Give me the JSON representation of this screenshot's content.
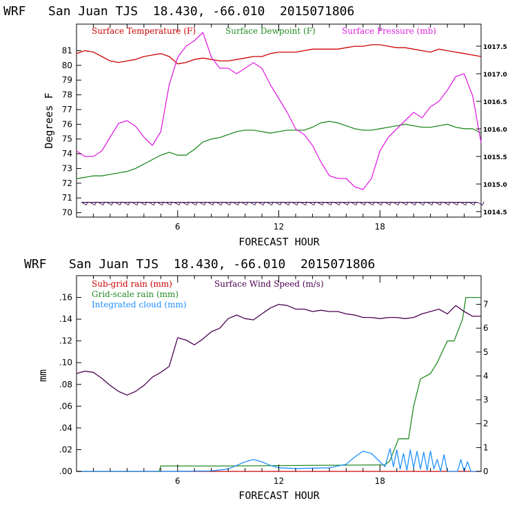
{
  "colors": {
    "temperature": "#cc0000",
    "dewpoint": "#228b22",
    "pressure": "#e020e0",
    "wind_barb": "#3a1050",
    "subgrid_rain": "#cc0000",
    "gridscale_rain": "#228b22",
    "cloud": "#1e90ff",
    "wind_speed": "#4b0050"
  },
  "chart_data": [
    {
      "type": "line",
      "title": "WRF   San Juan TJS  18.430, -66.010  2015071806",
      "xlabel": "FORECAST HOUR",
      "ylabel": "Degrees F",
      "xlim": [
        0,
        24
      ],
      "x_ticks": [
        6,
        12,
        18
      ],
      "ylim": [
        69.7,
        82.8
      ],
      "y_ticks": [
        70,
        71,
        72,
        73,
        74,
        75,
        76,
        77,
        78,
        79,
        80,
        81
      ],
      "y2lim": [
        1014.4,
        1017.9
      ],
      "y2_ticks": [
        "1014.5",
        "1015.0",
        "1015.5",
        "1016.0",
        "1016.5",
        "1017.0",
        "1017.5"
      ],
      "legend": [
        "Surface Temperature (F)",
        "Surface Dewpoint (F)",
        "Surface Pressure (mb)"
      ],
      "series": [
        {
          "name": "Surface Temperature (F)",
          "axis": "left",
          "x": [
            0,
            0.5,
            1,
            1.5,
            2,
            2.5,
            3,
            3.5,
            4,
            4.5,
            5,
            5.5,
            6,
            6.5,
            7,
            7.5,
            8,
            8.5,
            9,
            9.5,
            10,
            10.5,
            11,
            11.5,
            12,
            12.5,
            13,
            13.5,
            14,
            14.5,
            15,
            15.5,
            16,
            16.5,
            17,
            17.5,
            18,
            18.5,
            19,
            19.5,
            20,
            20.5,
            21,
            21.5,
            22,
            22.5,
            23,
            23.5,
            24
          ],
          "y": [
            80.8,
            81.0,
            80.9,
            80.6,
            80.3,
            80.2,
            80.3,
            80.4,
            80.6,
            80.7,
            80.8,
            80.6,
            80.1,
            80.2,
            80.4,
            80.5,
            80.4,
            80.3,
            80.3,
            80.4,
            80.5,
            80.6,
            80.6,
            80.8,
            80.9,
            80.9,
            80.9,
            81.0,
            81.1,
            81.1,
            81.1,
            81.1,
            81.2,
            81.3,
            81.3,
            81.4,
            81.4,
            81.3,
            81.2,
            81.2,
            81.1,
            81.0,
            80.9,
            81.1,
            81.0,
            80.9,
            80.8,
            80.7,
            80.6
          ]
        },
        {
          "name": "Surface Dewpoint (F)",
          "axis": "left",
          "x": [
            0,
            0.5,
            1,
            1.5,
            2,
            2.5,
            3,
            3.5,
            4,
            4.5,
            5,
            5.5,
            6,
            6.5,
            7,
            7.5,
            8,
            8.5,
            9,
            9.5,
            10,
            10.5,
            11,
            11.5,
            12,
            12.5,
            13,
            13.5,
            14,
            14.5,
            15,
            15.5,
            16,
            16.5,
            17,
            17.5,
            18,
            18.5,
            19,
            19.5,
            20,
            20.5,
            21,
            21.5,
            22,
            22.5,
            23,
            23.5,
            24
          ],
          "y": [
            72.3,
            72.4,
            72.5,
            72.5,
            72.6,
            72.7,
            72.8,
            73.0,
            73.3,
            73.6,
            73.9,
            74.1,
            73.9,
            73.9,
            74.3,
            74.8,
            75.0,
            75.1,
            75.3,
            75.5,
            75.6,
            75.6,
            75.5,
            75.4,
            75.5,
            75.6,
            75.6,
            75.6,
            75.8,
            76.1,
            76.2,
            76.1,
            75.9,
            75.7,
            75.6,
            75.6,
            75.7,
            75.8,
            75.9,
            76.0,
            75.9,
            75.8,
            75.8,
            75.9,
            76.0,
            75.8,
            75.7,
            75.7,
            75.4
          ]
        },
        {
          "name": "Surface Pressure (mb)",
          "axis": "right",
          "x": [
            0,
            0.5,
            1,
            1.5,
            2,
            2.5,
            3,
            3.5,
            4,
            4.5,
            5,
            5.5,
            6,
            6.5,
            7,
            7.5,
            8,
            8.5,
            9,
            9.5,
            10,
            10.5,
            11,
            11.5,
            12,
            12.5,
            13,
            13.5,
            14,
            14.5,
            15,
            15.5,
            16,
            16.5,
            17,
            17.5,
            18,
            18.5,
            19,
            19.5,
            20,
            20.5,
            21,
            21.5,
            22,
            22.5,
            23,
            23.5,
            24
          ],
          "y": [
            1015.6,
            1015.5,
            1015.5,
            1015.6,
            1015.85,
            1016.1,
            1016.15,
            1016.05,
            1015.85,
            1015.7,
            1015.95,
            1016.8,
            1017.3,
            1017.5,
            1017.6,
            1017.75,
            1017.3,
            1017.1,
            1017.1,
            1017.0,
            1017.1,
            1017.2,
            1017.1,
            1016.8,
            1016.55,
            1016.3,
            1016.0,
            1015.9,
            1015.7,
            1015.4,
            1015.15,
            1015.1,
            1015.1,
            1014.95,
            1014.9,
            1015.1,
            1015.6,
            1015.85,
            1016.0,
            1016.15,
            1016.3,
            1016.2,
            1016.4,
            1016.5,
            1016.7,
            1016.95,
            1017.0,
            1016.6,
            1015.75
          ]
        }
      ],
      "wind_barbs": {
        "name": "wind",
        "x_start": 0.3,
        "x_end": 23.8,
        "count": 48,
        "y_level": 70.7
      }
    },
    {
      "type": "line",
      "title": "WRF   San Juan TJS  18.430, -66.010  2015071806",
      "xlabel": "FORECAST HOUR",
      "ylabel": "mm",
      "xlim": [
        0,
        24
      ],
      "x_ticks": [
        6,
        12,
        18
      ],
      "ylim": [
        0,
        0.18
      ],
      "y_ticks": [
        ".00",
        ".02",
        ".04",
        ".06",
        ".08",
        ".10",
        ".12",
        ".14",
        ".16"
      ],
      "y_tick_values": [
        0,
        0.02,
        0.04,
        0.06,
        0.08,
        0.1,
        0.12,
        0.14,
        0.16
      ],
      "y2lim": [
        0,
        8.2
      ],
      "y2_ticks": [
        "0",
        "1",
        "2",
        "3",
        "4",
        "5",
        "6",
        "7"
      ],
      "legend": [
        "Sub-grid rain (mm)",
        "Surface Wind Speed (m/s)",
        "Grid-scale rain (mm)",
        "Integrated cloud (mm)"
      ],
      "series": [
        {
          "name": "Sub-grid rain (mm)",
          "axis": "left",
          "x": [
            0,
            24
          ],
          "y": [
            0,
            0
          ]
        },
        {
          "name": "Grid-scale rain (mm)",
          "axis": "left",
          "x": [
            0,
            4.9,
            5.0,
            9.0,
            18.3,
            18.6,
            19.1,
            19.7,
            20.0,
            20.4,
            21.0,
            21.4,
            22.0,
            22.4,
            22.9,
            23.1,
            24.0
          ],
          "y": [
            0,
            0,
            0.005,
            0.005,
            0.006,
            0.01,
            0.03,
            0.03,
            0.06,
            0.085,
            0.09,
            0.1,
            0.12,
            0.12,
            0.14,
            0.16,
            0.16
          ]
        },
        {
          "name": "Surface Wind Speed (m/s)",
          "axis": "right",
          "x": [
            0,
            0.5,
            1,
            1.5,
            2,
            2.5,
            3,
            3.5,
            4,
            4.5,
            5,
            5.5,
            6,
            6.5,
            7,
            7.5,
            8,
            8.5,
            9,
            9.5,
            10,
            10.5,
            11,
            11.5,
            12,
            12.5,
            13,
            13.5,
            14,
            14.5,
            15,
            15.5,
            16,
            16.5,
            17,
            17.5,
            18,
            18.5,
            19,
            19.5,
            20,
            20.5,
            21,
            21.5,
            22,
            22.5,
            23,
            23.5,
            24
          ],
          "y": [
            4.1,
            4.2,
            4.15,
            3.9,
            3.6,
            3.35,
            3.2,
            3.35,
            3.6,
            3.95,
            4.15,
            4.4,
            5.6,
            5.5,
            5.3,
            5.55,
            5.85,
            6.0,
            6.4,
            6.55,
            6.4,
            6.35,
            6.6,
            6.85,
            7.0,
            6.95,
            6.8,
            6.8,
            6.7,
            6.75,
            6.7,
            6.7,
            6.6,
            6.55,
            6.45,
            6.45,
            6.4,
            6.45,
            6.45,
            6.4,
            6.45,
            6.6,
            6.7,
            6.8,
            6.6,
            6.95,
            6.7,
            6.5,
            6.5
          ]
        },
        {
          "name": "Integrated cloud (mm)",
          "axis": "right",
          "x": [
            0,
            5,
            8,
            9,
            9.5,
            10,
            10.5,
            11,
            11.5,
            12,
            13,
            15,
            16,
            16.5,
            17,
            17.5,
            18,
            18.3,
            18.6,
            18.8,
            19.0,
            19.2,
            19.4,
            19.6,
            19.8,
            20.0,
            20.2,
            20.4,
            20.6,
            20.8,
            21.0,
            21.2,
            21.4,
            21.6,
            21.8,
            22.0,
            22.2,
            22.4,
            22.6,
            22.8,
            23.0,
            23.2,
            23.4,
            24
          ],
          "y": [
            0,
            0,
            0.02,
            0.1,
            0.25,
            0.4,
            0.5,
            0.4,
            0.25,
            0.15,
            0.12,
            0.15,
            0.3,
            0.6,
            0.85,
            0.75,
            0.4,
            0.2,
            0.95,
            0.2,
            0.9,
            0.1,
            0.75,
            0.05,
            0.9,
            0.15,
            0.85,
            0.1,
            0.8,
            0.05,
            0.85,
            0.1,
            0.5,
            0,
            0.7,
            0,
            0,
            0,
            0,
            0.5,
            0,
            0.4,
            0,
            0
          ]
        }
      ]
    }
  ]
}
